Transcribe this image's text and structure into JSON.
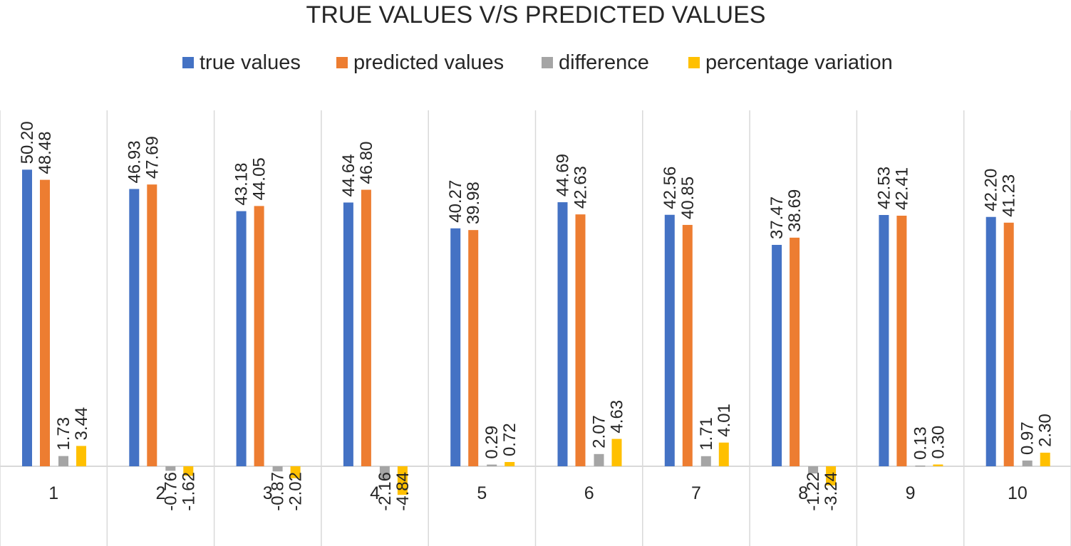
{
  "chart_data": {
    "type": "bar",
    "title": "TRUE VALUES V/S PREDICTED VALUES",
    "xlabel": "",
    "ylabel": "",
    "ylim": [
      -6,
      52
    ],
    "grid": false,
    "legend_position": "top",
    "categories": [
      "1",
      "2",
      "3",
      "4",
      "5",
      "6",
      "7",
      "8",
      "9",
      "10"
    ],
    "series": [
      {
        "name": "true values",
        "color": "#4472C4",
        "values": [
          50.2,
          46.93,
          43.18,
          44.64,
          40.27,
          44.69,
          42.56,
          37.47,
          42.53,
          42.2
        ],
        "labels": [
          "50.20",
          "46.93",
          "43.18",
          "44.64",
          "40.27",
          "44.69",
          "42.56",
          "37.47",
          "42.53",
          "42.20"
        ]
      },
      {
        "name": "predicted values",
        "color": "#ED7D31",
        "values": [
          48.48,
          47.69,
          44.05,
          46.8,
          39.98,
          42.63,
          40.85,
          38.69,
          42.41,
          41.23
        ],
        "labels": [
          "48.48",
          "47.69",
          "44.05",
          "46.80",
          "39.98",
          "42.63",
          "40.85",
          "38.69",
          "42.41",
          "41.23"
        ]
      },
      {
        "name": "difference",
        "color": "#A5A5A5",
        "values": [
          1.73,
          -0.76,
          -0.87,
          -2.16,
          0.29,
          2.07,
          1.71,
          -1.22,
          0.13,
          0.97
        ],
        "labels": [
          "1.73",
          "-0.76",
          "-0.87",
          "-2.16",
          "0.29",
          "2.07",
          "1.71",
          "-1.22",
          "0.13",
          "0.97"
        ]
      },
      {
        "name": "percentage variation",
        "color": "#FFC000",
        "values": [
          3.44,
          -1.62,
          -2.02,
          -4.84,
          0.72,
          4.63,
          4.01,
          -3.24,
          0.3,
          2.3
        ],
        "labels": [
          "3.44",
          "-1.62",
          "-2.02",
          "-4.84",
          "0.72",
          "4.63",
          "4.01",
          "-3.24",
          "0.30",
          "2.30"
        ]
      }
    ]
  }
}
